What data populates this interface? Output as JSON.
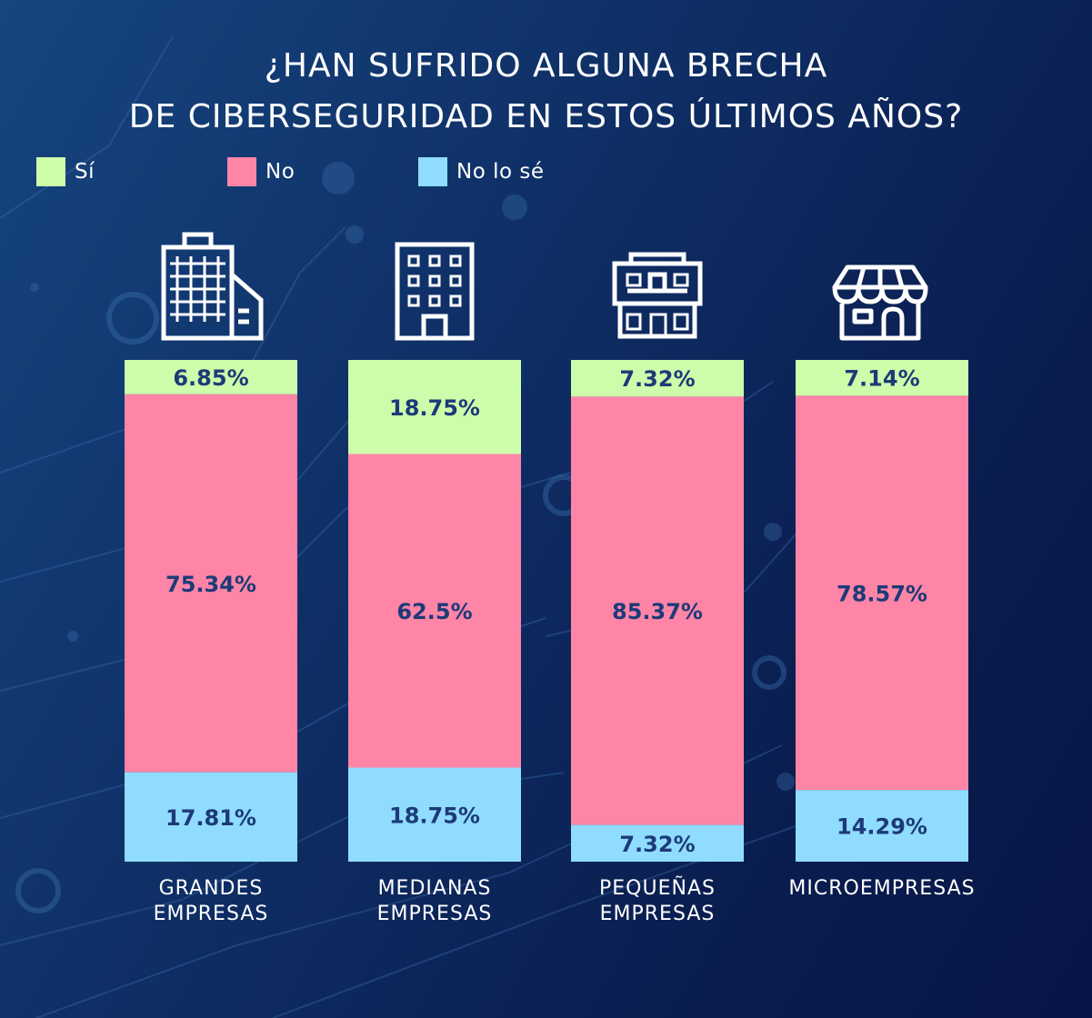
{
  "chart_data": {
    "type": "bar",
    "stacked": true,
    "title": [
      "¿HAN SUFRIDO ALGUNA BRECHA",
      "DE CIBERSEGURIDAD EN ESTOS ÚLTIMOS AÑOS?"
    ],
    "categories": [
      [
        "GRANDES",
        "EMPRESAS"
      ],
      [
        "MEDIANAS",
        "EMPRESAS"
      ],
      [
        "PEQUEÑAS",
        "EMPRESAS"
      ],
      [
        "MICROEMPRESAS"
      ]
    ],
    "series": [
      {
        "name": "Sí",
        "color": "#cdfdab",
        "values": [
          6.85,
          18.75,
          7.32,
          7.14
        ],
        "labels": [
          "6.85%",
          "18.75%",
          "7.32%",
          "7.14%"
        ]
      },
      {
        "name": "No",
        "color": "#ff85a7",
        "values": [
          75.34,
          62.5,
          85.37,
          78.57
        ],
        "labels": [
          "75.34%",
          "62.5%",
          "85.37%",
          "78.57%"
        ]
      },
      {
        "name": "No lo sé",
        "color": "#8fdcff",
        "values": [
          17.81,
          18.75,
          7.32,
          14.29
        ],
        "labels": [
          "17.81%",
          "18.75%",
          "7.32%",
          "14.29%"
        ]
      }
    ],
    "legend_position": "top-left",
    "label_color": "#1d3a78",
    "icons": [
      "office-tower-icon",
      "office-building-icon",
      "small-business-icon",
      "shop-icon"
    ]
  }
}
